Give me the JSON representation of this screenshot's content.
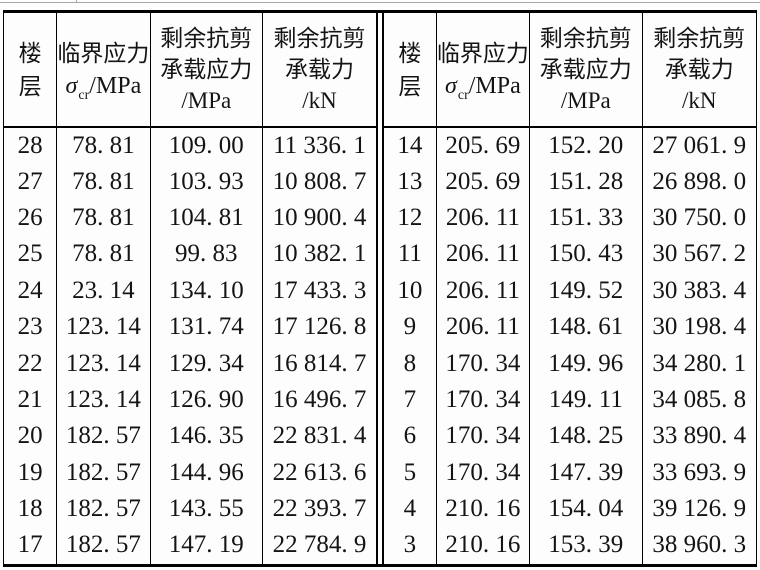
{
  "table": {
    "header": {
      "floor_line1": "楼",
      "floor_line2": "层",
      "critical_line1": "临界应力",
      "sigma": "σ",
      "sigma_sub": "cr",
      "critical_unit": "/MPa",
      "residual_stress_lines": [
        "剩余抗剪",
        "承载应力",
        "/MPa"
      ],
      "residual_capacity_lines": [
        "剩余抗剪",
        "承载力",
        "/kN"
      ]
    },
    "left_rows": [
      [
        "28",
        "78. 81",
        "109. 00",
        "11 336. 1"
      ],
      [
        "27",
        "78. 81",
        "103. 93",
        "10 808. 7"
      ],
      [
        "26",
        "78. 81",
        "104. 81",
        "10 900. 4"
      ],
      [
        "25",
        "78. 81",
        "99. 83",
        "10 382. 1"
      ],
      [
        "24",
        "23. 14",
        "134. 10",
        "17 433. 3"
      ],
      [
        "23",
        "123. 14",
        "131. 74",
        "17 126. 8"
      ],
      [
        "22",
        "123. 14",
        "129. 34",
        "16 814. 7"
      ],
      [
        "21",
        "123. 14",
        "126. 90",
        "16 496. 7"
      ],
      [
        "20",
        "182. 57",
        "146. 35",
        "22 831. 4"
      ],
      [
        "19",
        "182. 57",
        "144. 96",
        "22 613. 6"
      ],
      [
        "18",
        "182. 57",
        "143. 55",
        "22 393. 7"
      ],
      [
        "17",
        "182. 57",
        "147. 19",
        "22 784. 9"
      ]
    ],
    "right_rows": [
      [
        "14",
        "205. 69",
        "152. 20",
        "27 061. 9"
      ],
      [
        "13",
        "205. 69",
        "151. 28",
        "26 898. 0"
      ],
      [
        "12",
        "206. 11",
        "151. 33",
        "30 750. 0"
      ],
      [
        "11",
        "206. 11",
        "150. 43",
        "30 567. 2"
      ],
      [
        "10",
        "206. 11",
        "149. 52",
        "30 383. 4"
      ],
      [
        "9",
        "206. 11",
        "148. 61",
        "30 198. 4"
      ],
      [
        "8",
        "170. 34",
        "149. 96",
        "34 280. 1"
      ],
      [
        "7",
        "170. 34",
        "149. 11",
        "34 085. 8"
      ],
      [
        "6",
        "170. 34",
        "148. 25",
        "33 890. 4"
      ],
      [
        "5",
        "170. 34",
        "147. 39",
        "33 693. 9"
      ],
      [
        "4",
        "210. 16",
        "154. 04",
        "39 126. 9"
      ],
      [
        "3",
        "210. 16",
        "153. 39",
        "38 960. 3"
      ]
    ],
    "colors": {
      "border": "#000000",
      "text": "#141414",
      "background": "#fdfdfd",
      "top_rule": "#a8a8a8"
    }
  }
}
